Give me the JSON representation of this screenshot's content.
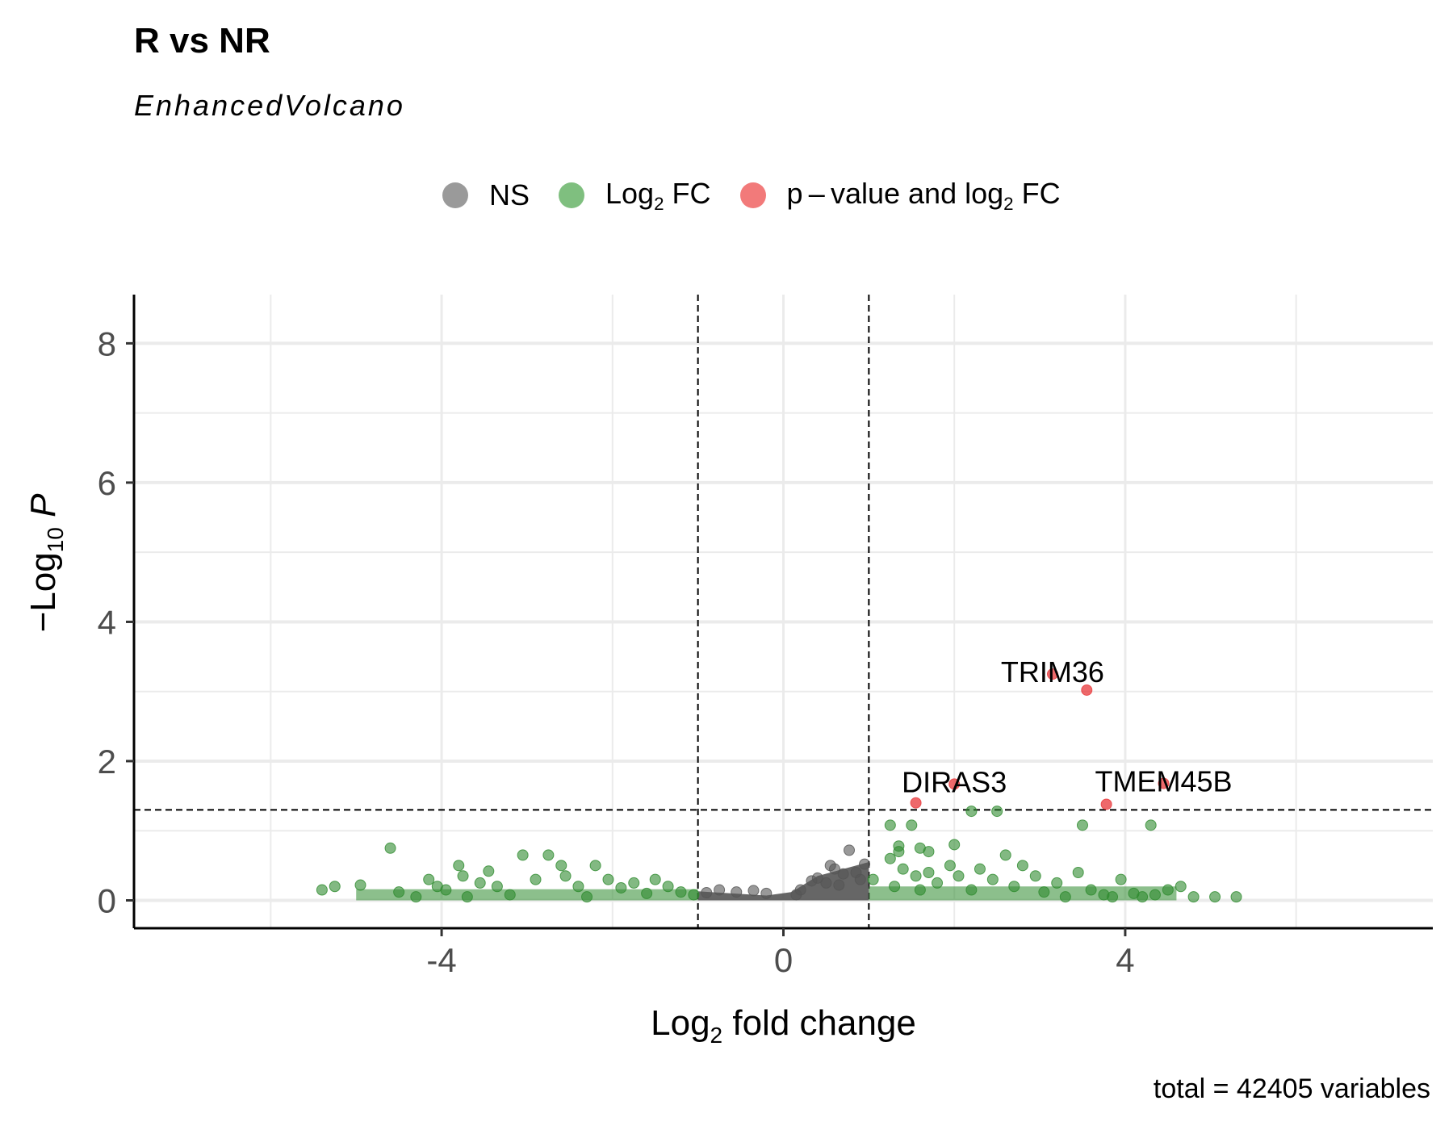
{
  "chart_data": {
    "type": "scatter",
    "title": "R vs NR",
    "subtitle": "EnhancedVolcano",
    "caption": "total = 42405 variables",
    "xlabel": "Log2 fold change",
    "ylabel": "−Log10 P",
    "xlim": [
      -7.6,
      7.6
    ],
    "ylim": [
      -0.4,
      8.7
    ],
    "x_ticks": [
      -4,
      0,
      4
    ],
    "x_tick_labels": [
      "-4",
      "0",
      "4"
    ],
    "y_ticks": [
      0,
      2,
      4,
      6,
      8
    ],
    "y_tick_labels": [
      "0",
      "2",
      "4",
      "6",
      "8"
    ],
    "grid": true,
    "legend_position": "top",
    "cutoffs": {
      "log2fc": [
        -1,
        1
      ],
      "neglog10p": 1.3
    },
    "legend": [
      {
        "name": "NS",
        "color": "#7f7f7f"
      },
      {
        "name": "Log2 FC",
        "color": "#3fa33f"
      },
      {
        "name": "p – value and log2 FC",
        "color": "#f04a4a"
      }
    ],
    "series": [
      {
        "name": "NS",
        "color": "#555555",
        "points": [
          [
            0.77,
            0.72
          ],
          [
            0.95,
            0.52
          ],
          [
            0.6,
            0.45
          ],
          [
            0.55,
            0.5
          ],
          [
            0.4,
            0.32
          ],
          [
            0.33,
            0.28
          ],
          [
            0.7,
            0.38
          ],
          [
            0.85,
            0.4
          ],
          [
            0.9,
            0.3
          ],
          [
            0.5,
            0.25
          ],
          [
            0.65,
            0.22
          ],
          [
            -0.2,
            0.1
          ],
          [
            -0.35,
            0.14
          ],
          [
            -0.55,
            0.12
          ],
          [
            -0.75,
            0.15
          ],
          [
            -0.9,
            0.11
          ],
          [
            0.2,
            0.15
          ],
          [
            0.15,
            0.08
          ]
        ]
      },
      {
        "name": "Log2 FC",
        "color": "#2e8b2e",
        "points": [
          [
            -5.4,
            0.15
          ],
          [
            -5.25,
            0.2
          ],
          [
            -4.95,
            0.22
          ],
          [
            -4.6,
            0.75
          ],
          [
            -4.5,
            0.12
          ],
          [
            -4.3,
            0.05
          ],
          [
            -4.15,
            0.3
          ],
          [
            -4.05,
            0.2
          ],
          [
            -3.95,
            0.15
          ],
          [
            -3.8,
            0.5
          ],
          [
            -3.75,
            0.35
          ],
          [
            -3.7,
            0.05
          ],
          [
            -3.55,
            0.25
          ],
          [
            -3.45,
            0.42
          ],
          [
            -3.35,
            0.2
          ],
          [
            -3.2,
            0.08
          ],
          [
            -3.05,
            0.65
          ],
          [
            -2.9,
            0.3
          ],
          [
            -2.75,
            0.65
          ],
          [
            -2.6,
            0.5
          ],
          [
            -2.55,
            0.35
          ],
          [
            -2.4,
            0.2
          ],
          [
            -2.3,
            0.05
          ],
          [
            -2.2,
            0.5
          ],
          [
            -2.05,
            0.3
          ],
          [
            -1.9,
            0.18
          ],
          [
            -1.75,
            0.25
          ],
          [
            -1.6,
            0.1
          ],
          [
            -1.5,
            0.3
          ],
          [
            -1.35,
            0.2
          ],
          [
            -1.2,
            0.12
          ],
          [
            -1.05,
            0.08
          ],
          [
            1.05,
            0.3
          ],
          [
            1.25,
            0.6
          ],
          [
            1.3,
            0.2
          ],
          [
            1.35,
            0.7
          ],
          [
            1.4,
            0.45
          ],
          [
            1.55,
            0.35
          ],
          [
            1.6,
            0.15
          ],
          [
            1.7,
            0.4
          ],
          [
            1.8,
            0.25
          ],
          [
            1.95,
            0.5
          ],
          [
            2.05,
            0.35
          ],
          [
            2.2,
            0.15
          ],
          [
            2.3,
            0.45
          ],
          [
            2.45,
            0.3
          ],
          [
            2.6,
            0.65
          ],
          [
            2.7,
            0.2
          ],
          [
            2.8,
            0.5
          ],
          [
            2.95,
            0.35
          ],
          [
            3.05,
            0.12
          ],
          [
            3.2,
            0.25
          ],
          [
            3.3,
            0.05
          ],
          [
            3.45,
            0.4
          ],
          [
            3.6,
            0.15
          ],
          [
            3.75,
            0.08
          ],
          [
            3.85,
            0.05
          ],
          [
            3.95,
            0.3
          ],
          [
            4.1,
            0.1
          ],
          [
            4.2,
            0.05
          ],
          [
            4.35,
            0.08
          ],
          [
            4.5,
            0.15
          ],
          [
            4.65,
            0.2
          ],
          [
            4.8,
            0.05
          ],
          [
            5.05,
            0.05
          ],
          [
            5.3,
            0.05
          ],
          [
            1.25,
            1.08
          ],
          [
            1.5,
            1.08
          ],
          [
            2.2,
            1.28
          ],
          [
            2.5,
            1.28
          ],
          [
            3.5,
            1.08
          ],
          [
            4.3,
            1.08
          ],
          [
            1.35,
            0.78
          ],
          [
            1.6,
            0.75
          ],
          [
            1.7,
            0.7
          ],
          [
            2.0,
            0.8
          ]
        ]
      },
      {
        "name": "p – value and log2 FC",
        "color": "#e8373a",
        "points": [
          [
            3.55,
            3.02
          ],
          [
            3.15,
            3.25
          ],
          [
            3.78,
            1.38
          ],
          [
            4.45,
            1.68
          ],
          [
            1.55,
            1.4
          ],
          [
            2.0,
            1.67
          ]
        ]
      }
    ],
    "labels": [
      {
        "text": "TRIM36",
        "x": 3.15,
        "y": 3.25
      },
      {
        "text": "DIRAS3",
        "x": 2.0,
        "y": 1.67
      },
      {
        "text": "TMEM45B",
        "x": 4.45,
        "y": 1.68
      }
    ]
  }
}
